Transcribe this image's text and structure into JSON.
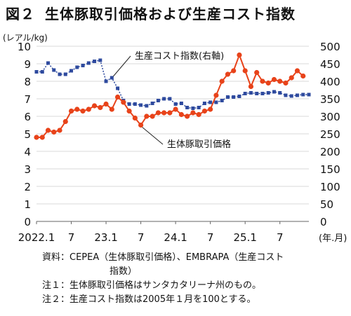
{
  "figure": {
    "number": "図２",
    "title": "生体豚取引価格および生産コスト指数"
  },
  "chart_data": {
    "type": "line",
    "left_axis": {
      "unit": "(レアル/kg)",
      "ylim": [
        0,
        10
      ],
      "ticks": [
        "0",
        "1",
        "2",
        "3",
        "4",
        "5",
        "6",
        "7",
        "8",
        "9",
        "10"
      ]
    },
    "right_axis": {
      "ylim": [
        0,
        500
      ],
      "ticks": [
        "0",
        "50",
        "100",
        "150",
        "200",
        "250",
        "300",
        "350",
        "400",
        "450",
        "500"
      ]
    },
    "x_ticks": [
      "2022.1",
      "7",
      "23.1",
      "7",
      "24.1",
      "7",
      "25.1",
      "7"
    ],
    "x_unit": "(年.月)",
    "grid": true,
    "series": [
      {
        "name": "生産コスト指数(右軸)",
        "axis": "right",
        "color": "#2e4a9e",
        "marker": "square",
        "values": [
          427,
          427,
          452,
          432,
          420,
          420,
          430,
          440,
          445,
          452,
          457,
          460,
          400,
          410,
          380,
          345,
          335,
          335,
          332,
          330,
          337,
          345,
          350,
          350,
          335,
          337,
          325,
          323,
          325,
          337,
          340,
          340,
          345,
          355,
          355,
          357,
          365,
          367,
          365,
          365,
          367,
          370,
          367,
          360,
          358,
          360,
          362,
          362
        ]
      },
      {
        "name": "生体豚取引価格",
        "axis": "left",
        "color": "#e8431a",
        "marker": "circle",
        "values": [
          4.8,
          4.8,
          5.2,
          5.1,
          5.2,
          5.7,
          6.3,
          6.4,
          6.3,
          6.4,
          6.6,
          6.5,
          6.7,
          6.4,
          7.1,
          6.8,
          6.3,
          5.9,
          5.5,
          6.0,
          6.0,
          6.2,
          6.2,
          6.2,
          6.4,
          6.1,
          6.0,
          6.2,
          6.1,
          6.3,
          6.4,
          7.2,
          8.0,
          8.4,
          8.6,
          9.5,
          8.6,
          7.7,
          8.5,
          8.0,
          7.9,
          8.1,
          8.0,
          7.9,
          8.2,
          8.6,
          8.3
        ]
      }
    ],
    "annotations": [
      "生産コスト指数(右軸)",
      "生体豚取引価格"
    ]
  },
  "notes": [
    "資料：CEPEA（生体豚取引価格）、EMBRAPA（生産コスト",
    "指数）",
    "注１：生体豚取引価格はサンタカタリーナ州のもの。",
    "注２：生産コスト指数は2005年１月を100とする。"
  ]
}
